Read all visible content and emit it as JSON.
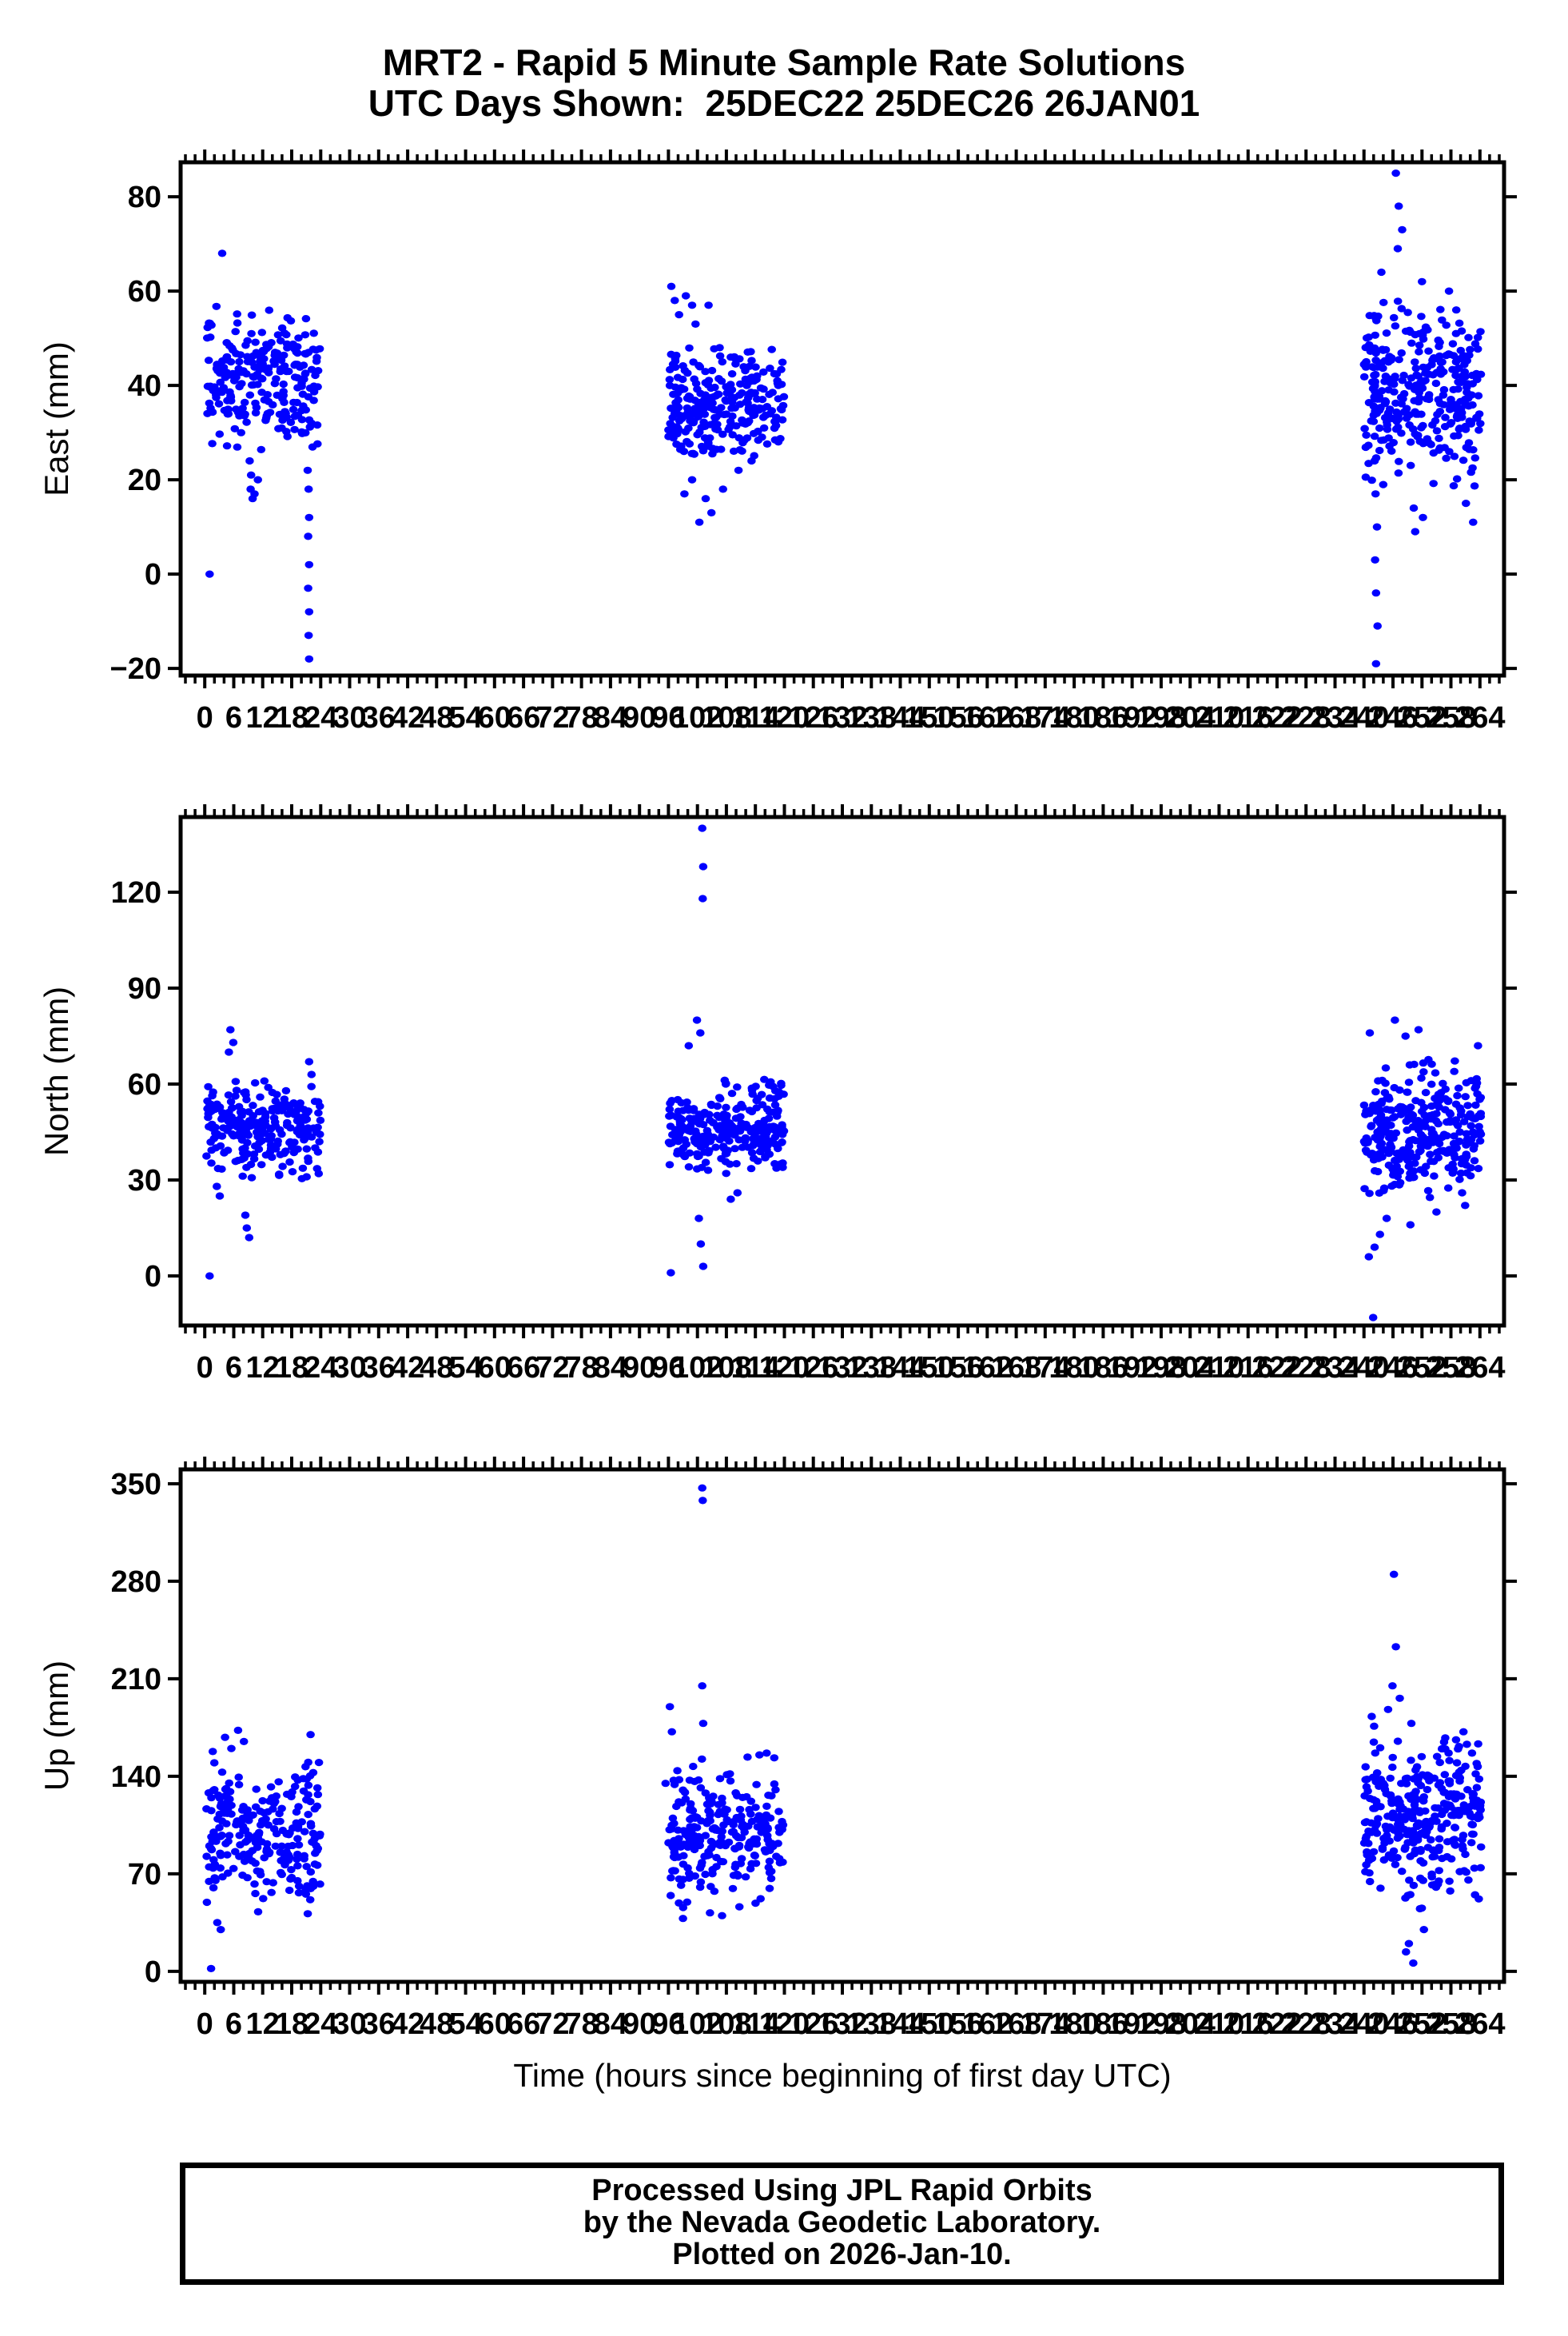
{
  "title": {
    "line1": "MRT2 - Rapid 5 Minute Sample Rate Solutions",
    "line2": "UTC Days Shown:  25DEC22 25DEC26 26JAN01",
    "station": "MRT2",
    "utc_days": [
      "25DEC22",
      "25DEC26",
      "26JAN01"
    ]
  },
  "footer": {
    "line1": "Processed Using JPL Rapid Orbits",
    "line2": "by the Nevada Geodetic Laboratory.",
    "line3": "Plotted on 2026-Jan-10."
  },
  "colors": {
    "marker": "#0000ff",
    "axis": "#000000",
    "background": "#ffffff"
  },
  "seed": 1337,
  "marker": {
    "rx": 5.3,
    "ry": 4.6
  },
  "x_axis": {
    "label": "Time (hours since beginning of first day UTC)",
    "range": [
      -5,
      269
    ],
    "tick_major": 6,
    "tick_minor": 2,
    "label_min": 0,
    "label_max": 264
  },
  "chart_data": [
    {
      "type": "scatter",
      "name": "east",
      "ylabel": "East (mm)",
      "ylim": [
        -21.5,
        87.3
      ],
      "yticks": [
        -20,
        0,
        20,
        40,
        60,
        80
      ],
      "clusters": [
        {
          "x": [
            0.2,
            24.0
          ],
          "n": 245,
          "mean": 41,
          "sd": 7.5,
          "clip": [
            26,
            57
          ]
        },
        {
          "x": [
            96.0,
            120.0
          ],
          "n": 260,
          "mean": 36,
          "sd": 6.0,
          "clip": [
            25,
            50
          ]
        },
        {
          "x": [
            240.0,
            264.3
          ],
          "n": 320,
          "mean": 38,
          "sd": 9.0,
          "clip": [
            18,
            58
          ]
        }
      ],
      "outliers": [
        [
          1.0,
          0
        ],
        [
          3.6,
          68
        ],
        [
          9.3,
          24
        ],
        [
          9.6,
          21
        ],
        [
          9.5,
          18
        ],
        [
          9.9,
          16
        ],
        [
          10.3,
          17
        ],
        [
          11.0,
          20
        ],
        [
          21.3,
          22
        ],
        [
          21.5,
          18
        ],
        [
          21.6,
          12
        ],
        [
          21.4,
          8
        ],
        [
          21.6,
          2
        ],
        [
          21.4,
          -3
        ],
        [
          21.6,
          -8
        ],
        [
          21.5,
          -13
        ],
        [
          21.6,
          -18
        ],
        [
          96.6,
          61
        ],
        [
          97.3,
          58
        ],
        [
          98.2,
          55
        ],
        [
          99.6,
          59
        ],
        [
          100.9,
          57
        ],
        [
          101.6,
          53
        ],
        [
          104.3,
          57
        ],
        [
          106.6,
          48
        ],
        [
          108.9,
          46
        ],
        [
          99.3,
          17
        ],
        [
          100.9,
          20
        ],
        [
          102.4,
          11
        ],
        [
          103.7,
          16
        ],
        [
          104.9,
          13
        ],
        [
          107.3,
          18
        ],
        [
          110.5,
          22
        ],
        [
          113.2,
          24
        ],
        [
          246.6,
          85
        ],
        [
          247.2,
          78
        ],
        [
          247.9,
          73
        ],
        [
          247.0,
          69
        ],
        [
          243.6,
          64
        ],
        [
          257.6,
          60
        ],
        [
          259.1,
          56
        ],
        [
          252.0,
          62
        ],
        [
          242.2,
          24
        ],
        [
          242.4,
          17
        ],
        [
          242.7,
          10
        ],
        [
          242.3,
          3
        ],
        [
          242.5,
          -4
        ],
        [
          242.8,
          -11
        ],
        [
          242.5,
          -19
        ],
        [
          250.3,
          14
        ],
        [
          250.6,
          9
        ],
        [
          252.2,
          12
        ],
        [
          261.1,
          15
        ],
        [
          262.6,
          11
        ]
      ]
    },
    {
      "type": "scatter",
      "name": "north",
      "ylabel": "North (mm)",
      "ylim": [
        -15.5,
        143.5
      ],
      "yticks": [
        0,
        30,
        60,
        90,
        120
      ],
      "clusters": [
        {
          "x": [
            0.2,
            24.0
          ],
          "n": 245,
          "mean": 47,
          "sd": 7.5,
          "clip": [
            30,
            65
          ]
        },
        {
          "x": [
            96.0,
            120.0
          ],
          "n": 260,
          "mean": 46,
          "sd": 6.5,
          "clip": [
            30,
            62
          ]
        },
        {
          "x": [
            240.0,
            264.3
          ],
          "n": 320,
          "mean": 45,
          "sd": 9.5,
          "clip": [
            22,
            72
          ]
        }
      ],
      "outliers": [
        [
          1.0,
          0
        ],
        [
          5.3,
          77
        ],
        [
          5.9,
          73
        ],
        [
          5.0,
          70
        ],
        [
          8.4,
          19
        ],
        [
          8.7,
          15
        ],
        [
          9.2,
          12
        ],
        [
          21.6,
          67
        ],
        [
          22.1,
          63
        ],
        [
          3.1,
          25
        ],
        [
          2.5,
          28
        ],
        [
          103.0,
          140
        ],
        [
          103.2,
          128
        ],
        [
          103.1,
          118
        ],
        [
          101.9,
          80
        ],
        [
          102.6,
          76
        ],
        [
          100.2,
          72
        ],
        [
          102.3,
          18
        ],
        [
          102.7,
          10
        ],
        [
          103.2,
          3
        ],
        [
          96.5,
          1
        ],
        [
          108.9,
          24
        ],
        [
          110.3,
          26
        ],
        [
          246.4,
          80
        ],
        [
          248.6,
          75
        ],
        [
          251.3,
          77
        ],
        [
          263.6,
          72
        ],
        [
          241.2,
          76
        ],
        [
          241.9,
          -13
        ],
        [
          241.0,
          6
        ],
        [
          242.2,
          9
        ],
        [
          243.3,
          13
        ],
        [
          244.7,
          18
        ],
        [
          249.6,
          16
        ],
        [
          255.0,
          20
        ]
      ]
    },
    {
      "type": "scatter",
      "name": "up",
      "ylabel": "Up (mm)",
      "ylim": [
        -7.5,
        360.3
      ],
      "yticks": [
        0,
        70,
        140,
        210,
        280,
        350
      ],
      "clusters": [
        {
          "x": [
            0.2,
            24.0
          ],
          "n": 245,
          "mean": 100,
          "sd": 26,
          "clip": [
            40,
            160
          ]
        },
        {
          "x": [
            96.0,
            120.0
          ],
          "n": 260,
          "mean": 100,
          "sd": 23,
          "clip": [
            45,
            158
          ]
        },
        {
          "x": [
            240.0,
            264.3
          ],
          "n": 320,
          "mean": 110,
          "sd": 27,
          "clip": [
            45,
            170
          ]
        }
      ],
      "outliers": [
        [
          1.3,
          2
        ],
        [
          2.6,
          35
        ],
        [
          3.3,
          30
        ],
        [
          4.2,
          168
        ],
        [
          6.9,
          173
        ],
        [
          21.9,
          170
        ],
        [
          8.1,
          165
        ],
        [
          5.5,
          160
        ],
        [
          0.9,
          75
        ],
        [
          1.8,
          60
        ],
        [
          103.0,
          347
        ],
        [
          103.1,
          338
        ],
        [
          103.0,
          205
        ],
        [
          103.2,
          178
        ],
        [
          96.3,
          190
        ],
        [
          96.7,
          172
        ],
        [
          95.4,
          135
        ],
        [
          104.6,
          42
        ],
        [
          107.1,
          40
        ],
        [
          99.0,
          38
        ],
        [
          246.2,
          285
        ],
        [
          246.6,
          233
        ],
        [
          245.9,
          205
        ],
        [
          247.4,
          196
        ],
        [
          245.0,
          188
        ],
        [
          241.6,
          183
        ],
        [
          242.1,
          176
        ],
        [
          260.6,
          172
        ],
        [
          261.3,
          163
        ],
        [
          249.8,
          178
        ],
        [
          249.3,
          20
        ],
        [
          250.2,
          6
        ],
        [
          252.4,
          30
        ],
        [
          251.6,
          45
        ],
        [
          248.7,
          14
        ],
        [
          263.0,
          55
        ]
      ]
    }
  ]
}
